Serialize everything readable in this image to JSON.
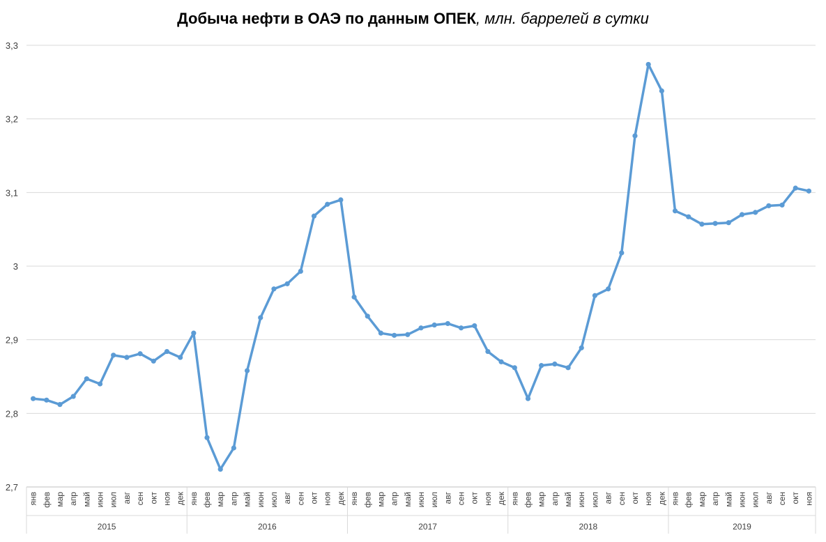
{
  "chart_data": {
    "type": "line",
    "title_main": "Добыча нефти в ОАЭ по данным ОПЕК",
    "title_unit": ", млн. баррелей в сутки",
    "ylim": [
      2.7,
      3.3
    ],
    "y_ticks": [
      "2,7",
      "2,8",
      "2,9",
      "3",
      "3,1",
      "3,2",
      "3,3"
    ],
    "grid": true,
    "line_color": "#5b9bd5",
    "months": [
      "янв",
      "фев",
      "мар",
      "апр",
      "май",
      "июн",
      "июл",
      "авг",
      "сен",
      "окт",
      "ноя",
      "дек"
    ],
    "years": [
      {
        "label": "2015",
        "count": 12
      },
      {
        "label": "2016",
        "count": 12
      },
      {
        "label": "2017",
        "count": 12
      },
      {
        "label": "2018",
        "count": 12
      },
      {
        "label": "2019",
        "count": 11
      }
    ],
    "values": [
      2.82,
      2.818,
      2.812,
      2.823,
      2.847,
      2.84,
      2.879,
      2.876,
      2.881,
      2.871,
      2.884,
      2.876,
      2.909,
      2.767,
      2.724,
      2.753,
      2.858,
      2.93,
      2.969,
      2.976,
      2.993,
      3.068,
      3.084,
      3.09,
      2.958,
      2.932,
      2.909,
      2.906,
      2.907,
      2.916,
      2.92,
      2.922,
      2.916,
      2.919,
      2.884,
      2.87,
      2.862,
      2.82,
      2.865,
      2.867,
      2.862,
      2.889,
      2.96,
      2.969,
      3.018,
      3.177,
      3.274,
      3.238,
      3.075,
      3.067,
      3.057,
      3.058,
      3.059,
      3.07,
      3.073,
      3.082,
      3.083,
      3.106,
      3.102
    ]
  }
}
